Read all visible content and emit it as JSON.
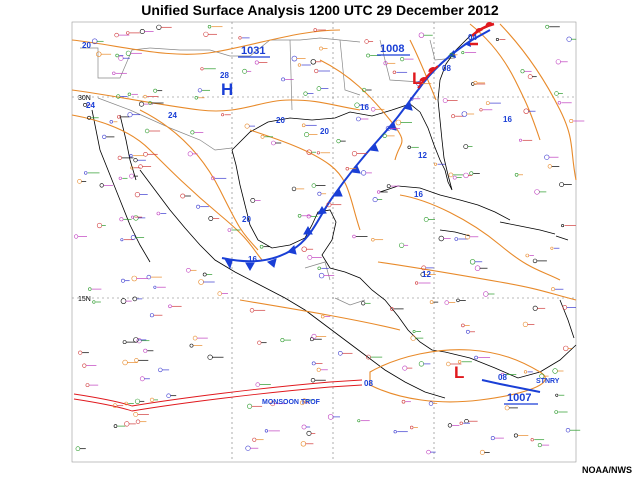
{
  "title": "Unified Surface Analysis 1200 UTC 29 December 2012",
  "credit": "NOAA/NWS",
  "lat_labels": [
    "30N",
    "15N"
  ],
  "pressure_centers": [
    {
      "type": "H",
      "label": "H",
      "value": "1031",
      "color": "#1a3fd6"
    },
    {
      "type": "L",
      "label": "L",
      "value": "1008",
      "color": "#e0191e"
    },
    {
      "type": "L",
      "label": "L",
      "value": "1007",
      "color": "#e0191e"
    }
  ],
  "isobar_labels": [
    "20",
    "24",
    "28",
    "20",
    "24",
    "16",
    "20",
    "12",
    "16",
    "20",
    "16",
    "16",
    "12",
    "04",
    "08",
    "08",
    "08"
  ],
  "feature_labels": {
    "monsoon": "MONSOON TROF",
    "stationary": "STNRY"
  },
  "colors": {
    "isobar": "#e88a2a",
    "cold_front": "#1a3fd6",
    "warm_front": "#e0191e",
    "coast": "#000000",
    "trough": "#e0191e",
    "graticule": "#666666"
  }
}
